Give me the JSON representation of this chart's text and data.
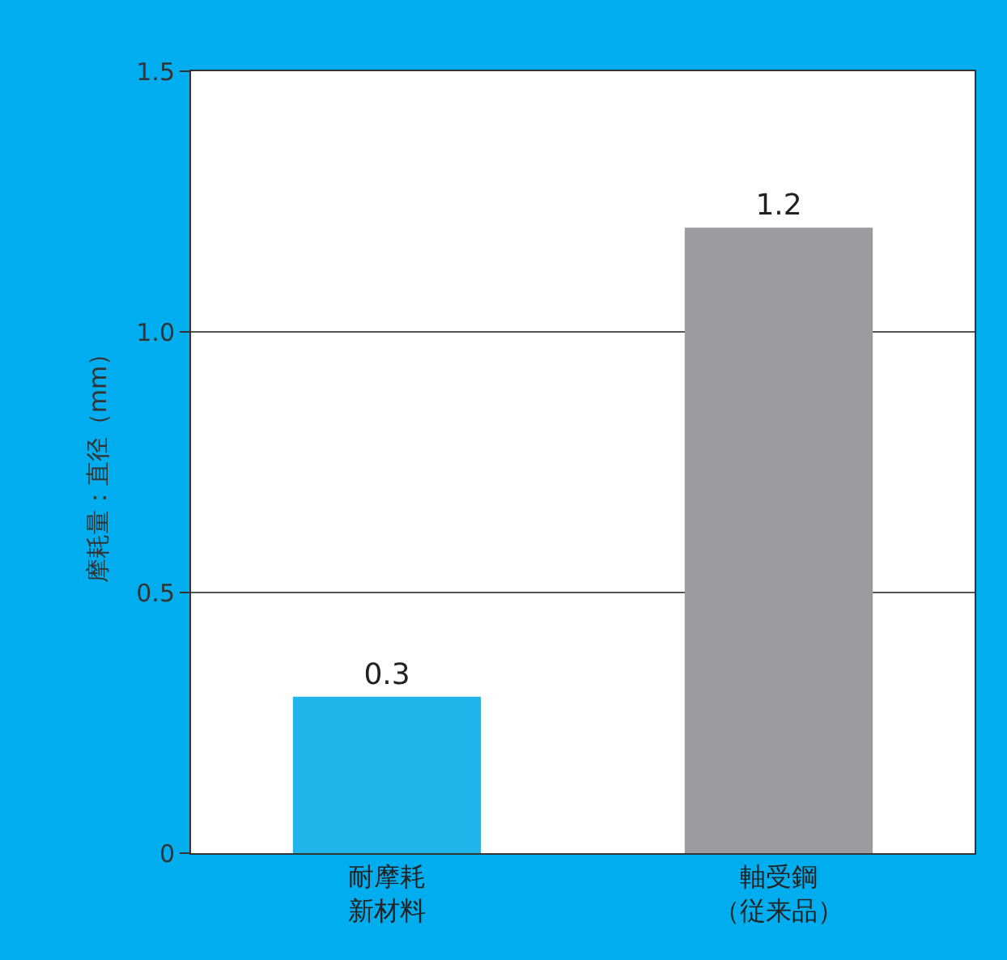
{
  "chart_data": {
    "type": "bar",
    "ylabel": "摩耗量：直径（mm）",
    "categories": [
      "耐摩耗新材料",
      "軸受鋼（従来品）"
    ],
    "values": [
      0.3,
      1.2
    ],
    "colors": [
      "#1fb4ea",
      "#9c9ca0"
    ],
    "ylim": [
      0,
      1.5
    ],
    "yticks": [
      0,
      {
        "value": 0.5,
        "label": "0.5"
      },
      {
        "value": 1,
        "label": "1.0"
      },
      1.5
    ],
    "grid": "y",
    "data_labels": true,
    "legend": false
  }
}
